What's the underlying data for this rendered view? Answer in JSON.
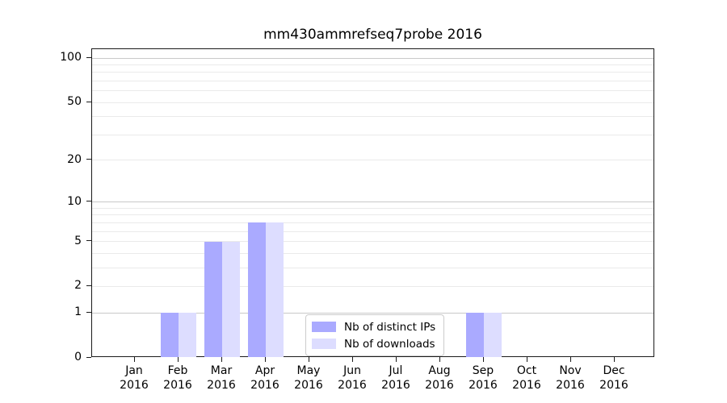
{
  "title": "mm430ammrefseq7probe 2016",
  "legend": {
    "items": [
      {
        "label": "Nb of distinct IPs",
        "color": "#aaaaff"
      },
      {
        "label": "Nb of downloads",
        "color": "#ddddff"
      }
    ]
  },
  "chart_data": {
    "type": "bar",
    "title": "mm430ammrefseq7probe 2016",
    "categories": [
      "Jan",
      "Feb",
      "Mar",
      "Apr",
      "May",
      "Jun",
      "Jul",
      "Aug",
      "Sep",
      "Oct",
      "Nov",
      "Dec"
    ],
    "category_year": "2016",
    "series": [
      {
        "name": "Nb of distinct IPs",
        "color": "#aaaaff",
        "values": [
          0,
          1,
          5,
          7,
          0,
          0,
          0,
          0,
          1,
          0,
          0,
          0
        ]
      },
      {
        "name": "Nb of downloads",
        "color": "#ddddff",
        "values": [
          0,
          1,
          5,
          7,
          0,
          0,
          0,
          0,
          1,
          0,
          0,
          0
        ]
      }
    ],
    "xlabel": "",
    "ylabel": "",
    "yscale": "log1p",
    "ylim": [
      0,
      115
    ],
    "yticks": [
      0,
      1,
      2,
      5,
      10,
      20,
      50,
      100
    ],
    "major_gridlines": [
      1,
      10,
      100
    ],
    "minor_gridlines": [
      2,
      3,
      4,
      5,
      6,
      7,
      8,
      9,
      20,
      30,
      40,
      50,
      60,
      70,
      80,
      90
    ],
    "grid": true,
    "legend_position": "lower center inside plot"
  }
}
